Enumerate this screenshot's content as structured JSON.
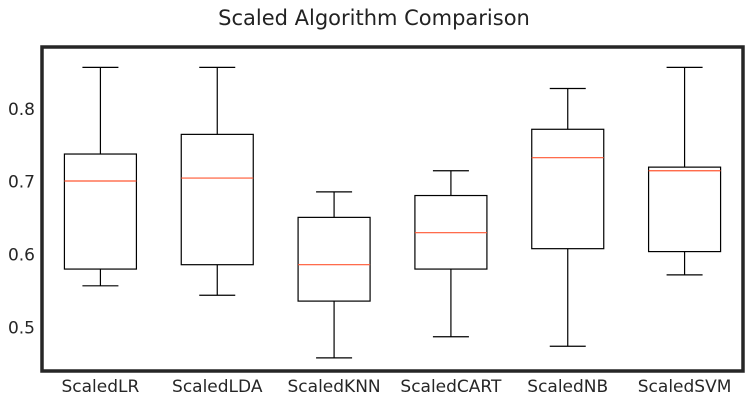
{
  "chart_data": {
    "type": "box",
    "title": "Scaled Algorithm Comparison",
    "xlabel": "",
    "ylabel": "",
    "ylim": [
      0.44,
      0.885
    ],
    "yticks": [
      0.5,
      0.6,
      0.7,
      0.8
    ],
    "ytick_labels": [
      "0.5",
      "0.6",
      "0.7",
      "0.8"
    ],
    "grid": false,
    "categories": [
      "ScaledLR",
      "ScaledLDA",
      "ScaledKNN",
      "ScaledCART",
      "ScaledNB",
      "ScaledSVM"
    ],
    "boxes": [
      {
        "label": "ScaledLR",
        "whisker_low": 0.557,
        "q1": 0.58,
        "median": 0.701,
        "q3": 0.738,
        "whisker_high": 0.857
      },
      {
        "label": "ScaledLDA",
        "whisker_low": 0.544,
        "q1": 0.586,
        "median": 0.705,
        "q3": 0.765,
        "whisker_high": 0.857
      },
      {
        "label": "ScaledKNN",
        "whisker_low": 0.458,
        "q1": 0.536,
        "median": 0.586,
        "q3": 0.651,
        "whisker_high": 0.686
      },
      {
        "label": "ScaledCART",
        "whisker_low": 0.487,
        "q1": 0.58,
        "median": 0.63,
        "q3": 0.681,
        "whisker_high": 0.715
      },
      {
        "label": "ScaledNB",
        "whisker_low": 0.474,
        "q1": 0.608,
        "median": 0.733,
        "q3": 0.772,
        "whisker_high": 0.828
      },
      {
        "label": "ScaledSVM",
        "whisker_low": 0.572,
        "q1": 0.604,
        "median": 0.715,
        "q3": 0.72,
        "whisker_high": 0.857
      }
    ],
    "colors": {
      "box": "#000000",
      "median": "#ff5733",
      "frame": "#262626",
      "text": "#262626"
    }
  }
}
